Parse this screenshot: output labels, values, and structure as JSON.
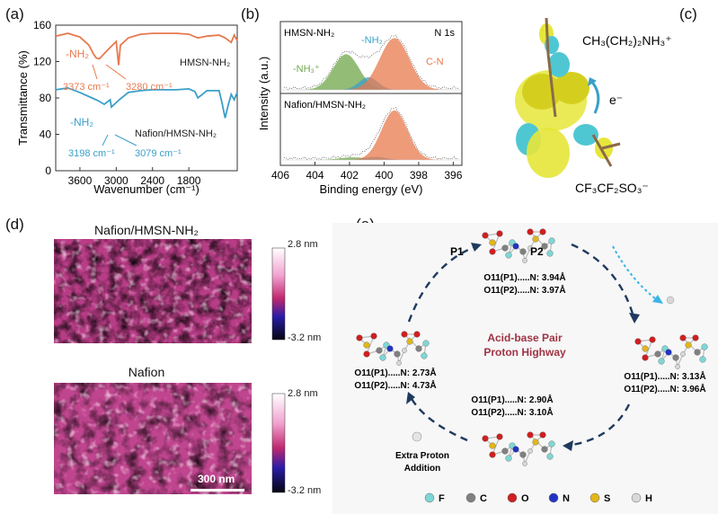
{
  "panel_labels": {
    "a": "(a)",
    "b": "(b)",
    "c": "(c)",
    "d": "(d)",
    "e": "(e)"
  },
  "chart_data": [
    {
      "type": "line",
      "panel": "a",
      "xlabel": "Wavenumber (cm⁻¹)",
      "ylabel": "Transmittance (%)",
      "xlim": [
        4000,
        1000
      ],
      "ylim": [
        0,
        160
      ],
      "x_ticks": [
        3600,
        3000,
        2400,
        1800
      ],
      "y_ticks": [
        0,
        40,
        80,
        120,
        160
      ],
      "series": [
        {
          "name": "HMSN-NH₂",
          "color": "#e8794e",
          "x": [
            4000,
            3800,
            3600,
            3450,
            3373,
            3330,
            3280,
            3150,
            3000,
            2960,
            2930,
            2800,
            2600,
            2400,
            2200,
            2000,
            1800,
            1650,
            1500,
            1300,
            1200,
            1100,
            1050,
            1000
          ],
          "y": [
            148,
            151,
            147,
            138,
            128,
            124,
            123,
            132,
            142,
            116,
            138,
            146,
            150,
            151,
            151,
            151,
            150,
            146,
            148,
            149,
            146,
            141,
            149,
            143
          ]
        },
        {
          "name": "Nafion/HMSN-NH₂",
          "color": "#3a9fc8",
          "x": [
            4000,
            3800,
            3600,
            3400,
            3300,
            3198,
            3100,
            3079,
            2950,
            2800,
            2600,
            2400,
            2200,
            2000,
            1800,
            1700,
            1650,
            1500,
            1300,
            1250,
            1200,
            1150,
            1100,
            1050,
            1000
          ],
          "y": [
            89,
            91,
            86,
            80,
            77,
            73,
            78,
            70,
            78,
            86,
            88,
            89,
            89,
            89,
            90,
            87,
            80,
            88,
            88,
            74,
            58,
            72,
            84,
            78,
            86
          ]
        }
      ],
      "annotations": {
        "hmsn_nh2_peak": "-NH₂",
        "hmsn_label": "HMSN-NH₂",
        "hmsn_wn1": "3373 cm⁻¹",
        "hmsn_wn2": "3280 cm⁻¹",
        "nafion_nh2_peak": "-NH₂",
        "nafion_label": "Nafion/HMSN-NH₂",
        "nafion_wn1": "3198 cm⁻¹",
        "nafion_wn2": "3079 cm⁻¹"
      }
    },
    {
      "type": "area",
      "panel": "b",
      "xlabel": "Binding energy (eV)",
      "ylabel": "Intensity (a.u.)",
      "xlim": [
        406,
        395.5
      ],
      "x_ticks": [
        406,
        404,
        402,
        400,
        398,
        396
      ],
      "corner_label": "N 1s",
      "spectra": [
        {
          "name": "HMSN-NH₂",
          "components": [
            {
              "name": "-NH₃⁺",
              "center": 402.2,
              "height": 0.62,
              "width": 0.75,
              "color": "#6fa74a"
            },
            {
              "name": "-NH₂",
              "center": 400.9,
              "height": 0.22,
              "width": 0.55,
              "color": "#3a9fc8"
            },
            {
              "name": "C-N",
              "center": 399.4,
              "height": 0.9,
              "width": 0.85,
              "color": "#e8794e"
            }
          ]
        },
        {
          "name": "Nafion/HMSN-NH₂",
          "components": [
            {
              "name": "-NH₃⁺",
              "center": 401.8,
              "height": 0.05,
              "width": 0.8,
              "color": "#6fa74a"
            },
            {
              "name": "-NH₂",
              "center": 400.5,
              "height": 0.06,
              "width": 0.6,
              "color": "#3a9fc8"
            },
            {
              "name": "C-N",
              "center": 399.4,
              "height": 0.95,
              "width": 0.75,
              "color": "#e8794e"
            }
          ]
        }
      ]
    }
  ],
  "panel_c": {
    "cation": "CH₃(CH₂)₂NH₃⁺",
    "anion": "CF₃CF₂SO₃⁻",
    "electron": "e⁻"
  },
  "panel_d": {
    "images": [
      {
        "title": "Nafion/HMSN-NH₂",
        "scale_max": "2.8 nm",
        "scale_min": "-3.2 nm"
      },
      {
        "title": "Nafion",
        "scale_max": "2.8 nm",
        "scale_min": "-3.2 nm",
        "scalebar": "300 nm"
      }
    ]
  },
  "panel_e": {
    "center_title_line1": "Acid-base Pair",
    "center_title_line2": "Proton Highway",
    "p1": "P1",
    "p2": "P2",
    "states": [
      {
        "line1": "O11(P1).....N: 3.94Å",
        "line2": "O11(P2).....N: 3.97Å"
      },
      {
        "line1": "O11(P1).....N: 3.13Å",
        "line2": "O11(P2).....N: 3.96Å"
      },
      {
        "line1": "O11(P1).....N: 2.90Å",
        "line2": "O11(P2).....N: 3.10Å"
      },
      {
        "line1": "O11(P1).....N: 2.73Å",
        "line2": "O11(P2).....N: 4.73Å"
      }
    ],
    "extra_proton_line1": "Extra Proton",
    "extra_proton_line2": "Addition",
    "legend": [
      {
        "symbol": "F",
        "color": "#7fd6d6"
      },
      {
        "symbol": "C",
        "color": "#808080"
      },
      {
        "symbol": "O",
        "color": "#d11e1e"
      },
      {
        "symbol": "N",
        "color": "#2233c4"
      },
      {
        "symbol": "S",
        "color": "#e2b619"
      },
      {
        "symbol": "H",
        "color": "#d8d8d8"
      }
    ]
  }
}
